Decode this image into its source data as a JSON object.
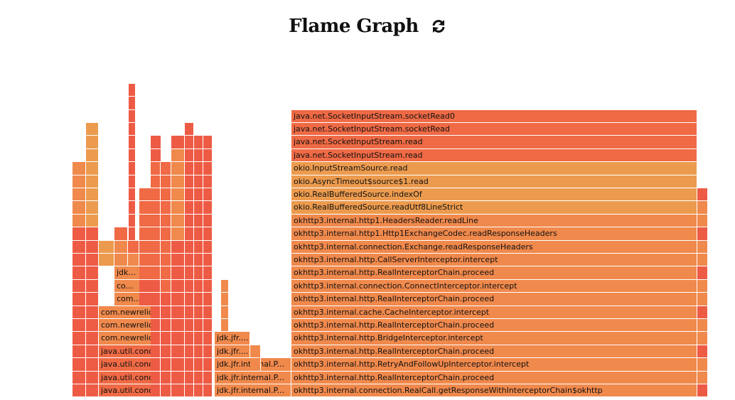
{
  "header": {
    "title": "Flame Graph",
    "reload_icon": "reload-icon"
  },
  "colors": {
    "deep_orange": "#ef6a45",
    "orange": "#f0894c",
    "light_orange": "#ec9b4e",
    "red": "#ee5b45",
    "tan": "#e9a152"
  },
  "frames": {
    "main_stack": [
      "java.net.SocketInputStream.socketRead0",
      "java.net.SocketInputStream.socketRead",
      "java.net.SocketInputStream.read",
      "java.net.SocketInputStream.read",
      "okio.InputStreamSource.read",
      "okio.AsyncTimeout$source$1.read",
      "okio.RealBufferedSource.indexOf",
      "okio.RealBufferedSource.readUtf8LineStrict",
      "okhttp3.internal.http1.HeadersReader.readLine",
      "okhttp3.internal.http1.Http1ExchangeCodec.readResponseHeaders",
      "okhttp3.internal.connection.Exchange.readResponseHeaders",
      "okhttp3.internal.http.CallServerInterceptor.intercept",
      "okhttp3.internal.http.RealInterceptorChain.proceed",
      "okhttp3.internal.connection.ConnectInterceptor.intercept",
      "okhttp3.internal.http.RealInterceptorChain.proceed",
      "okhttp3.internal.cache.CacheInterceptor.intercept",
      "okhttp3.internal.http.RealInterceptorChain.proceed",
      "okhttp3.internal.http.BridgeInterceptor.intercept",
      "okhttp3.internal.http.RealInterceptorChain.proceed",
      "okhttp3.internal.http.RetryAndFollowUpInterceptor.intercept",
      "okhttp3.internal.http.RealInterceptorChain.proceed",
      "okhttp3.internal.connection.RealCall.getResponseWithInterceptorChain$okhttp"
    ],
    "left_a": [
      "java.util.concur...",
      "java.util.concur...",
      "java.util.concur...",
      "java.util.concur...",
      "com.newrelic.jf...",
      "com.newrelic.jf...",
      "com.newrelic.jf..."
    ],
    "left_b": [
      "com....",
      "co...",
      "jdk..."
    ],
    "mid": [
      "jdk.jfr.internal.P...",
      "jdk.jfr.internal.P...",
      "jdk.jfr.internal.P...",
      "jdk.jfr....",
      "jdk.jfr...."
    ]
  }
}
